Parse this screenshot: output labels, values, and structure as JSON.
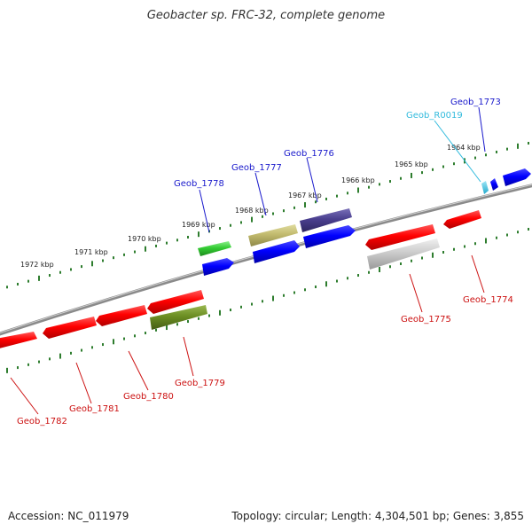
{
  "title": "Geobacter sp. FRC-32, complete genome",
  "footer": {
    "accession": "Accession: NC_011979",
    "summary": "Topology: circular; Length: 4,304,501 bp; Genes: 3,855"
  },
  "colors": {
    "backbone": "#8a8a8a",
    "tick": "#2e7d2e",
    "label_top": "#1a1acc",
    "label_bottom": "#cc1111",
    "label_rna": "#33bbdd"
  },
  "kbp_labels": [
    "1972 kbp",
    "1971 kbp",
    "1970 kbp",
    "1969 kbp",
    "1968 kbp",
    "1967 kbp",
    "1966 kbp",
    "1965 kbp",
    "1964 kbp"
  ],
  "gene_labels_top": [
    "Geob_1778",
    "Geob_1777",
    "Geob_1776",
    "Geob_R0019",
    "Geob_1773"
  ],
  "gene_labels_bottom": [
    "Geob_1782",
    "Geob_1781",
    "Geob_1780",
    "Geob_1779",
    "Geob_1775",
    "Geob_1774"
  ]
}
